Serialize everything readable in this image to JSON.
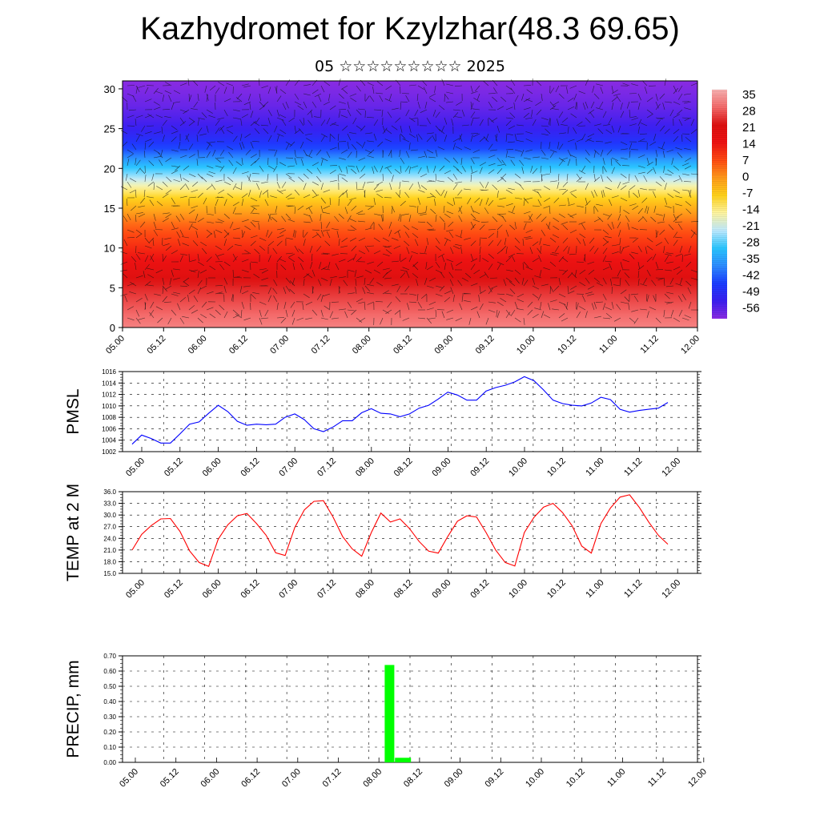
{
  "header": {
    "title": "Kazhydromet for Kzylzhar(48.3 69.65)",
    "subtitle": "05 ☆☆☆☆☆☆☆☆☆ 2025"
  },
  "colors": {
    "pmsl_line": "#0000ff",
    "temp_line": "#ff0000",
    "precip_bar": "#00ff00",
    "grid": "#000000"
  },
  "chart_data": [
    {
      "type": "heatmap",
      "name": "temperature-cross-section",
      "title": "",
      "x_tick_labels": [
        "05.00",
        "05.12",
        "06.00",
        "06.12",
        "07.00",
        "07.12",
        "08.00",
        "08.12",
        "09.00",
        "09.12",
        "10.00",
        "10.12",
        "11.00",
        "11.12",
        "12.00"
      ],
      "y_tick_labels": [
        "0",
        "5",
        "10",
        "15",
        "20",
        "25",
        "30"
      ],
      "ylim": [
        0,
        31
      ],
      "colorbar_labels": [
        "35",
        "28",
        "21",
        "14",
        "7",
        "0",
        "-7",
        "-14",
        "-21",
        "-28",
        "-35",
        "-42",
        "-49",
        "-56"
      ],
      "colorbar_range": [
        -60,
        38
      ],
      "colorbar_stops": [
        "#8a2be2",
        "#3a1ff0",
        "#1a3cff",
        "#2c8cff",
        "#29c6ff",
        "#bfeaff",
        "#fff5a0",
        "#ffd21a",
        "#ff9a1a",
        "#ff4a12",
        "#ee1212",
        "#dd1010",
        "#f46a6a",
        "#f8b0b0"
      ],
      "profile": {
        "heights": [
          0,
          5,
          10,
          13,
          16,
          17.5,
          19,
          20.5,
          22.5,
          24.5,
          26,
          28,
          31
        ],
        "values": [
          33,
          25,
          12,
          5,
          -6,
          -14,
          -24,
          -32,
          -44,
          -51,
          -54,
          -57,
          -60
        ]
      },
      "wind_barbs": true
    },
    {
      "type": "line",
      "name": "pmsl",
      "ylabel": "PMSL",
      "x_tick_labels": [
        "05.00",
        "05.12",
        "06.00",
        "06.12",
        "07.00",
        "07.12",
        "08.00",
        "08.12",
        "09.00",
        "09.12",
        "10.00",
        "10.12",
        "11.00",
        "11.12",
        "12.00"
      ],
      "y_tick_labels": [
        "1016",
        "1014",
        "1012",
        "1010",
        "1008",
        "1006",
        "1004",
        "1002"
      ],
      "ylim": [
        1002,
        1016
      ],
      "grid": true,
      "values": [
        1003.3,
        1004.9,
        1004.3,
        1003.5,
        1003.5,
        1005.1,
        1006.8,
        1007.2,
        1008.7,
        1010.1,
        1009.0,
        1007.3,
        1006.6,
        1006.8,
        1006.7,
        1006.8,
        1008.0,
        1008.6,
        1007.6,
        1006.0,
        1005.5,
        1006.3,
        1007.4,
        1007.4,
        1008.8,
        1009.5,
        1008.7,
        1008.6,
        1008.1,
        1008.6,
        1009.6,
        1010.1,
        1011.2,
        1012.4,
        1011.9,
        1011.0,
        1011.0,
        1012.6,
        1013.2,
        1013.6,
        1014.2,
        1015.1,
        1014.4,
        1012.8,
        1011.0,
        1010.4,
        1010.1,
        1010.0,
        1010.5,
        1011.5,
        1011.1,
        1009.4,
        1008.9,
        1009.2,
        1009.4,
        1009.6,
        1010.6
      ]
    },
    {
      "type": "line",
      "name": "temp-2m",
      "ylabel": "TEMP at 2 M",
      "x_tick_labels": [
        "05.00",
        "05.12",
        "06.00",
        "06.12",
        "07.00",
        "07.12",
        "08.00",
        "08.12",
        "09.00",
        "09.12",
        "10.00",
        "10.12",
        "11.00",
        "11.12",
        "12.00"
      ],
      "y_tick_labels": [
        "36.0",
        "33.0",
        "30.0",
        "27.0",
        "24.0",
        "21.0",
        "18.0",
        "15.0"
      ],
      "ylim": [
        15,
        36
      ],
      "grid": true,
      "values": [
        21.0,
        25.0,
        27.3,
        29.0,
        29.1,
        25.8,
        20.8,
        17.8,
        16.8,
        23.8,
        27.5,
        29.8,
        30.4,
        27.8,
        24.8,
        20.3,
        19.6,
        26.8,
        31.3,
        33.5,
        33.7,
        29.5,
        24.5,
        21.3,
        19.4,
        25.5,
        30.5,
        28.2,
        29.0,
        26.5,
        23.2,
        20.7,
        20.2,
        24.5,
        28.4,
        29.8,
        29.5,
        25.5,
        21.0,
        17.8,
        16.9,
        25.5,
        29.4,
        32.0,
        33.0,
        30.6,
        27.2,
        22.0,
        20.2,
        27.8,
        31.8,
        34.6,
        35.2,
        32.0,
        28.2,
        24.8,
        22.5
      ]
    },
    {
      "type": "bar",
      "name": "precip",
      "ylabel": "PRECIP, mm",
      "x_tick_labels": [
        "05.00",
        "05.12",
        "06.00",
        "06.12",
        "07.00",
        "07.12",
        "08.00",
        "08.12",
        "09.00",
        "09.12",
        "10.00",
        "10.12",
        "11.00",
        "11.12",
        "12.00"
      ],
      "y_tick_labels": [
        "0.70",
        "0.60",
        "0.50",
        "0.40",
        "0.30",
        "0.20",
        "0.10",
        "0.00"
      ],
      "ylim": [
        0,
        0.7
      ],
      "grid": true,
      "bars": [
        {
          "x_hours": 78,
          "value": 0.64
        },
        {
          "x_hours": 81,
          "value": 0.03
        }
      ]
    }
  ]
}
